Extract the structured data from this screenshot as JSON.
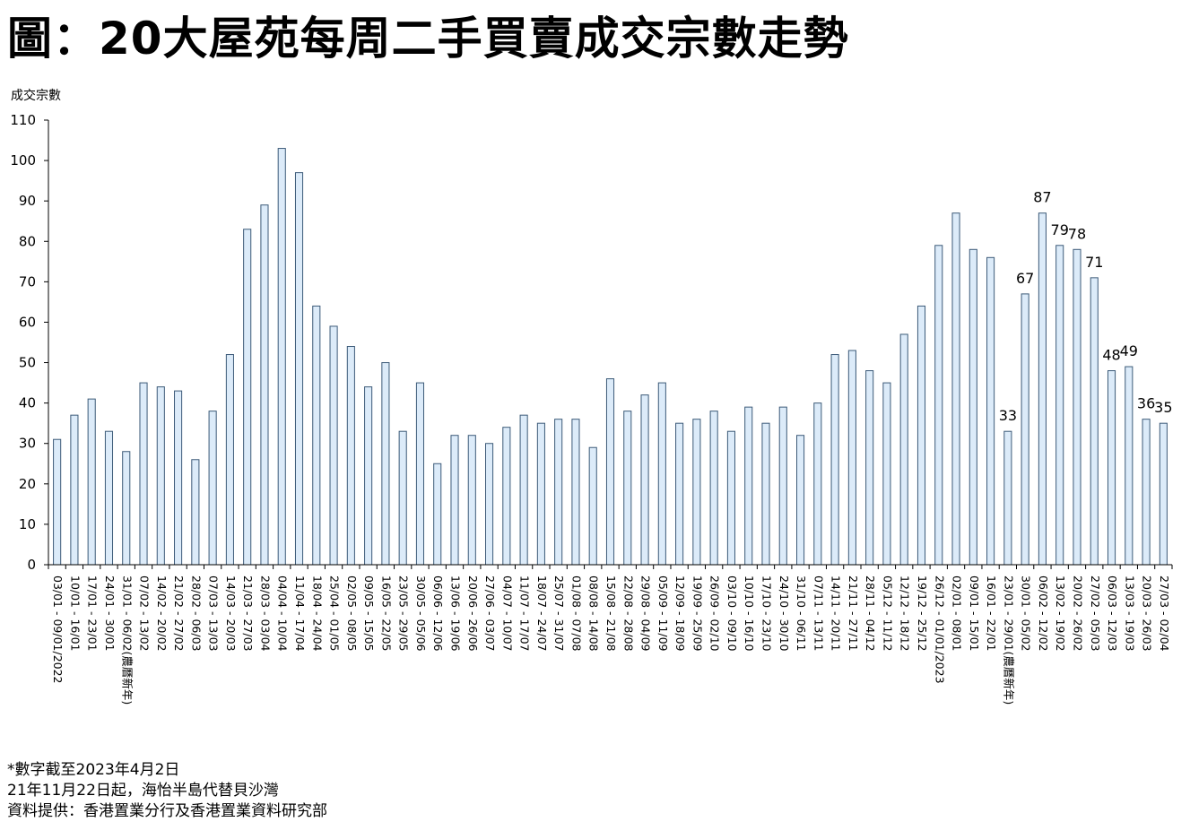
{
  "title": "圖：20大屋苑每周二手買賣成交宗數走勢",
  "notes": [
    "*數字截至2023年4月2日",
    "21年11月22日起，海怡半島代替貝沙灣",
    "資料提供：香港置業分行及香港置業資料研究部"
  ],
  "colors": {
    "bar_fill": "#dcebf9",
    "bar_stroke": "#3c5a78",
    "axis": "#000000"
  },
  "chart_data": {
    "type": "bar",
    "title": "",
    "ylabel": "成交宗數",
    "xlabel": "",
    "ylim": [
      0,
      110
    ],
    "yticks": [
      0,
      10,
      20,
      30,
      40,
      50,
      60,
      70,
      80,
      90,
      100,
      110
    ],
    "grid": false,
    "categories": [
      "03/01 - 09/01/2022",
      "10/01 - 16/01",
      "17/01 - 23/01",
      "24/01 - 30/01",
      "31/01 - 06/02(農曆新年)",
      "07/02 - 13/02",
      "14/02 - 20/02",
      "21/02 - 27/02",
      "28/02 - 06/03",
      "07/03 - 13/03",
      "14/03 - 20/03",
      "21/03 - 27/03",
      "28/03 - 03/04",
      "04/04 - 10/04",
      "11/04 - 17/04",
      "18/04 - 24/04",
      "25/04 - 01/05",
      "02/05 - 08/05",
      "09/05 - 15/05",
      "16/05 - 22/05",
      "23/05 - 29/05",
      "30/05 - 05/06",
      "06/06 - 12/06",
      "13/06 - 19/06",
      "20/06 - 26/06",
      "27/06 - 03/07",
      "04/07 - 10/07",
      "11/07 - 17/07",
      "18/07 - 24/07",
      "25/07 - 31/07",
      "01/08 - 07/08",
      "08/08 - 14/08",
      "15/08 - 21/08",
      "22/08 - 28/08",
      "29/08 - 04/09",
      "05/09 - 11/09",
      "12/09 - 18/09",
      "19/09 - 25/09",
      "26/09 - 02/10",
      "03/10 - 09/10",
      "10/10 - 16/10",
      "17/10 - 23/10",
      "24/10 - 30/10",
      "31/10 - 06/11",
      "07/11 - 13/11",
      "14/11 - 20/11",
      "21/11 - 27/11",
      "28/11 - 04/12",
      "05/12 - 11/12",
      "12/12 - 18/12",
      "19/12 - 25/12",
      "26/12 - 01/01/2023",
      "02/01 - 08/01",
      "09/01 - 15/01",
      "16/01 - 22/01",
      "23/01 - 29/01(農曆新年)",
      "30/01 - 05/02",
      "06/02 - 12/02",
      "13/02 - 19/02",
      "20/02 - 26/02",
      "27/02 - 05/03",
      "06/03 - 12/03",
      "13/03 - 19/03",
      "20/03 - 26/03",
      "27/03 - 02/04"
    ],
    "values": [
      31,
      37,
      41,
      33,
      28,
      45,
      44,
      43,
      26,
      38,
      52,
      83,
      89,
      103,
      97,
      64,
      59,
      54,
      44,
      50,
      33,
      45,
      25,
      32,
      32,
      30,
      34,
      37,
      35,
      36,
      36,
      29,
      46,
      38,
      42,
      45,
      35,
      36,
      38,
      33,
      39,
      35,
      39,
      32,
      40,
      52,
      53,
      48,
      45,
      57,
      64,
      79,
      87,
      78,
      76,
      33,
      67,
      87,
      79,
      78,
      71,
      48,
      49,
      36,
      35
    ],
    "data_labels": [
      {
        "index": 55,
        "text": "33"
      },
      {
        "index": 56,
        "text": "67"
      },
      {
        "index": 57,
        "text": "87"
      },
      {
        "index": 58,
        "text": "79"
      },
      {
        "index": 59,
        "text": "78"
      },
      {
        "index": 60,
        "text": "71"
      },
      {
        "index": 61,
        "text": "48"
      },
      {
        "index": 62,
        "text": "49"
      },
      {
        "index": 63,
        "text": "36"
      },
      {
        "index": 64,
        "text": "35"
      }
    ]
  }
}
